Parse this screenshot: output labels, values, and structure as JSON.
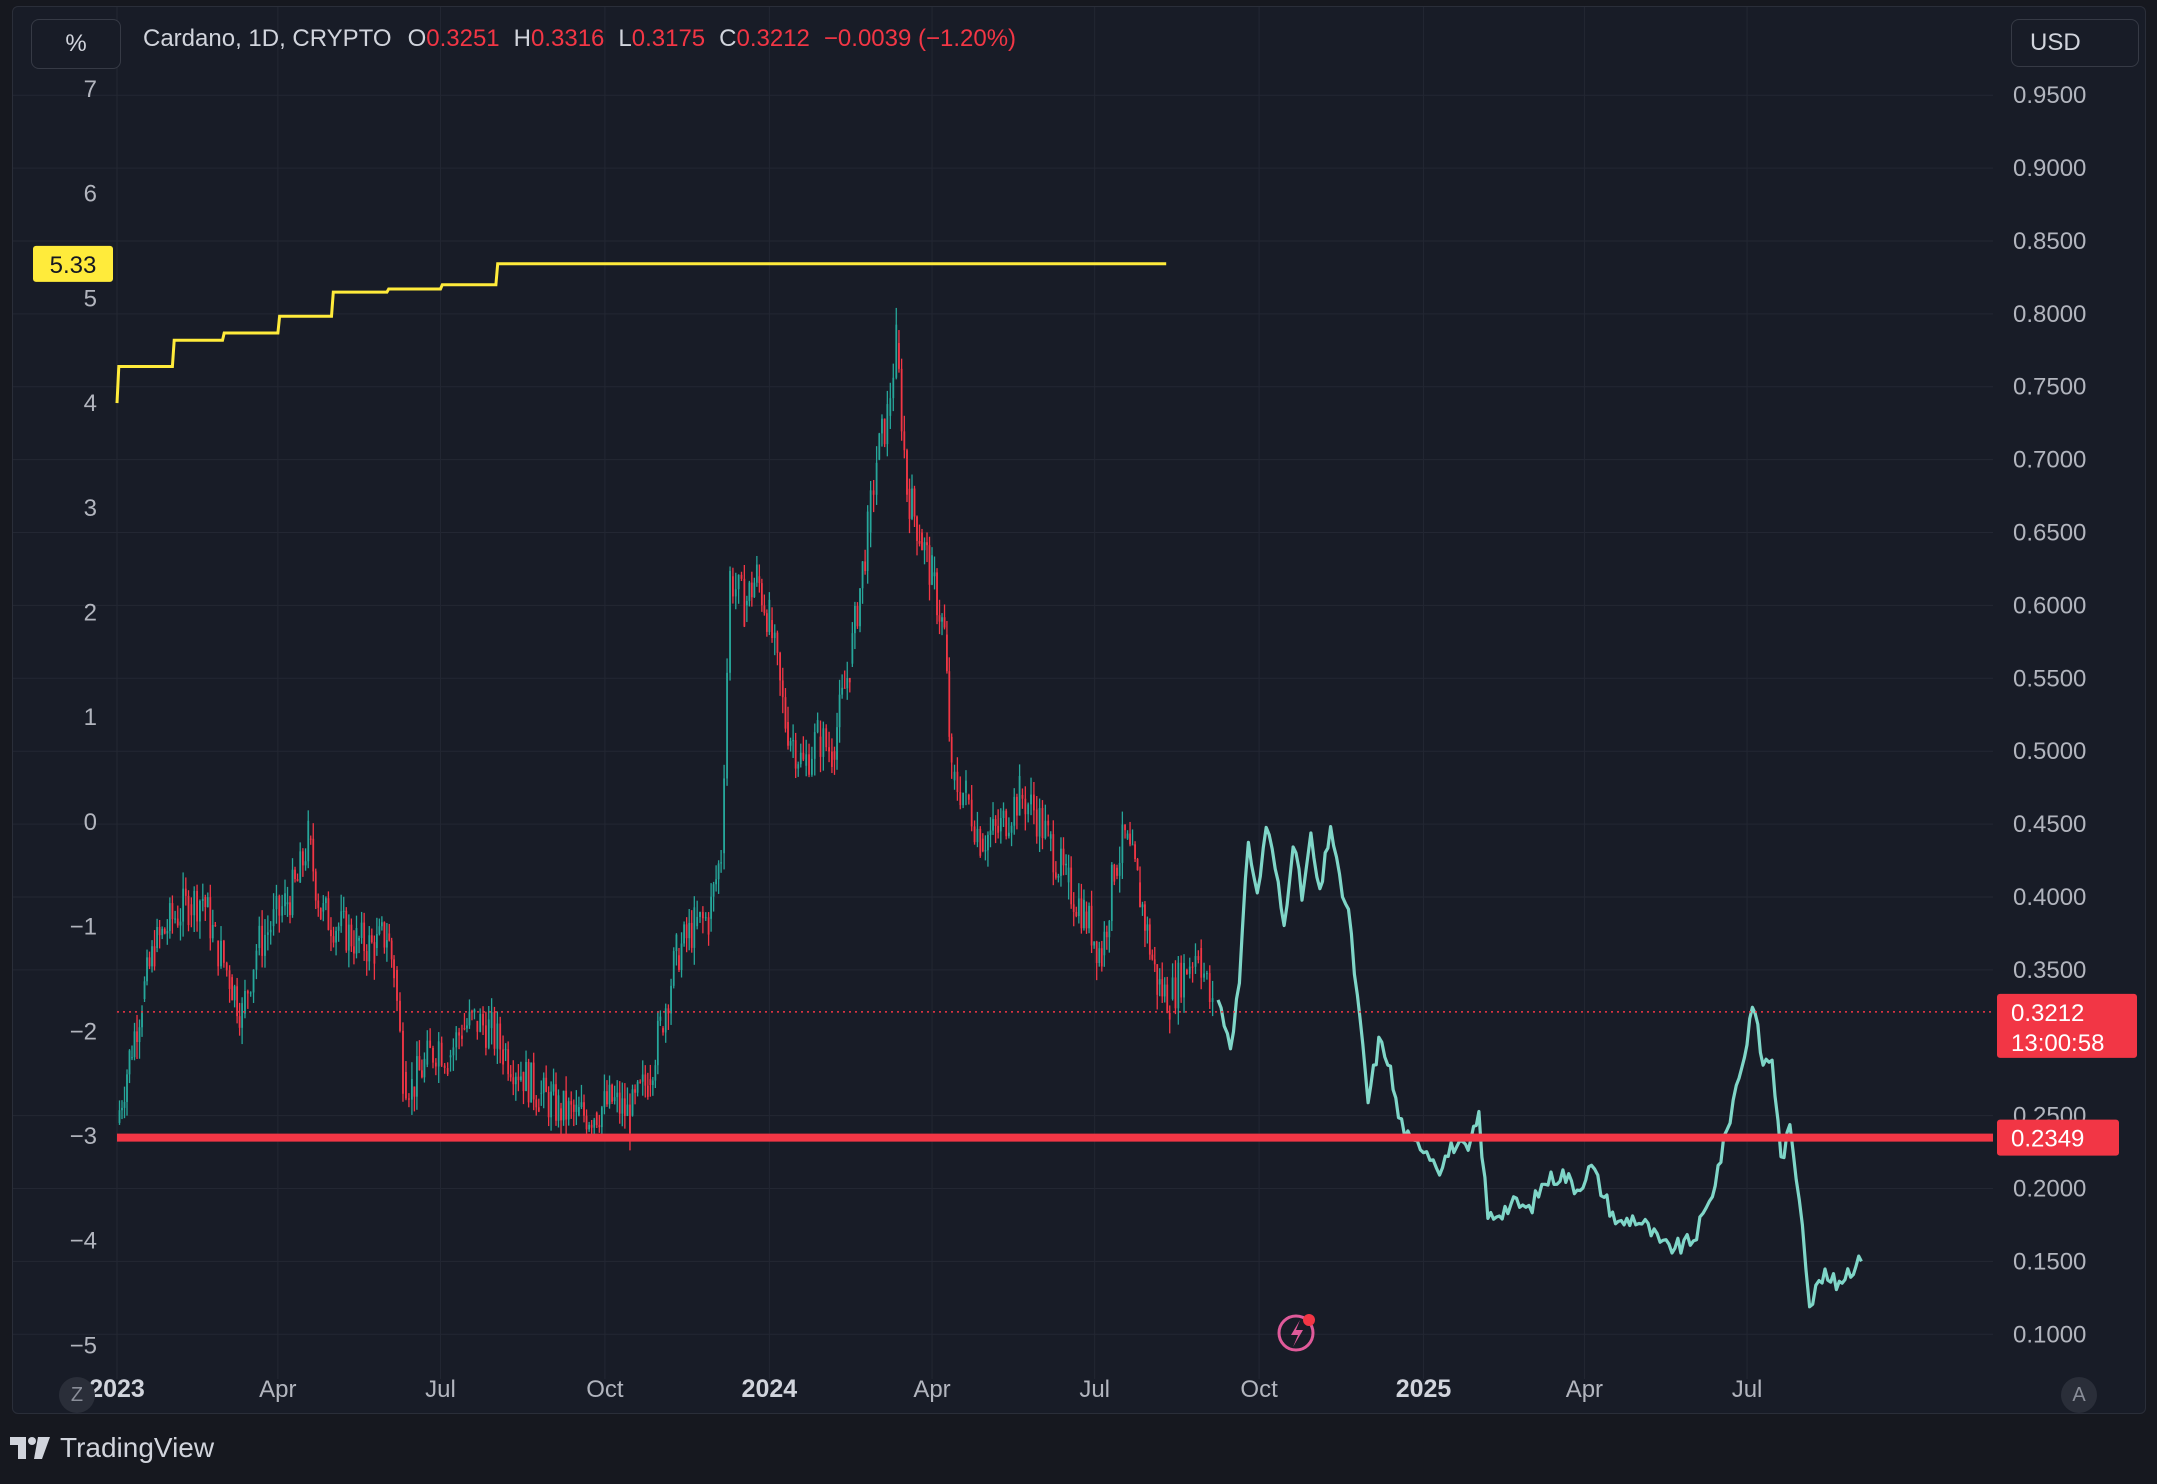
{
  "header": {
    "percent_button": "%",
    "currency_button": "USD",
    "symbol": "Cardano, 1D, CRYPTO",
    "open_label": "O",
    "open_value": "0.3251",
    "high_label": "H",
    "high_value": "0.3316",
    "low_label": "L",
    "low_value": "0.3175",
    "close_label": "C",
    "close_value": "0.3212",
    "change": "−0.0039 (−1.20%)"
  },
  "footer": {
    "brand": "TradingView",
    "z_button": "Z",
    "a_button": "A"
  },
  "colors": {
    "background": "#181c27",
    "up": "#26a69a",
    "down": "#f23645",
    "projection": "#7fd6c8",
    "percent_line": "#ffeb3b",
    "support": "#f23645",
    "grid": "#232733"
  },
  "chart_data": {
    "type": "line",
    "title": "Cardano, 1D, CRYPTO",
    "y_right": {
      "unit": "USD",
      "ylim": [
        0.0762,
        0.9762
      ],
      "ticks": [
        "0.9500",
        "0.9000",
        "0.8500",
        "0.8000",
        "0.7500",
        "0.7000",
        "0.6500",
        "0.6000",
        "0.5500",
        "0.5000",
        "0.4500",
        "0.4000",
        "0.3500",
        "0.2500",
        "0.2000",
        "0.1500",
        "0.1000"
      ],
      "tick_values": [
        0.95,
        0.9,
        0.85,
        0.8,
        0.75,
        0.7,
        0.65,
        0.6,
        0.55,
        0.5,
        0.45,
        0.4,
        0.35,
        0.25,
        0.2,
        0.15,
        0.1
      ]
    },
    "y_left": {
      "unit": "%",
      "ticks": [
        "7",
        "6",
        "5",
        "4",
        "3",
        "2",
        "1",
        "0",
        "−1",
        "−2",
        "−3",
        "−4",
        "−5"
      ],
      "tick_values": [
        7,
        6,
        5,
        4,
        3,
        2,
        1,
        0,
        -1,
        -2,
        -3,
        -4,
        -5
      ]
    },
    "x_axis": {
      "range": [
        "2023-01-01",
        "2025-09-05"
      ],
      "ticks": [
        {
          "label": "2023",
          "date": "2023-01-01",
          "bold": true
        },
        {
          "label": "Apr",
          "date": "2023-04-01",
          "bold": false
        },
        {
          "label": "Jul",
          "date": "2023-07-01",
          "bold": false
        },
        {
          "label": "Oct",
          "date": "2023-10-01",
          "bold": false
        },
        {
          "label": "2024",
          "date": "2024-01-01",
          "bold": true
        },
        {
          "label": "Apr",
          "date": "2024-04-01",
          "bold": false
        },
        {
          "label": "Jul",
          "date": "2024-07-01",
          "bold": false
        },
        {
          "label": "Oct",
          "date": "2024-10-01",
          "bold": false
        },
        {
          "label": "2025",
          "date": "2025-01-01",
          "bold": true
        },
        {
          "label": "Apr",
          "date": "2025-04-01",
          "bold": false
        },
        {
          "label": "Jul",
          "date": "2025-07-01",
          "bold": false
        }
      ]
    },
    "series": [
      {
        "kind": "candlestick_close",
        "points": [
          [
            "2023-01-01",
            0.245
          ],
          [
            "2023-01-08",
            0.29
          ],
          [
            "2023-01-15",
            0.33
          ],
          [
            "2023-01-22",
            0.365
          ],
          [
            "2023-02-01",
            0.385
          ],
          [
            "2023-02-10",
            0.395
          ],
          [
            "2023-02-18",
            0.4
          ],
          [
            "2023-02-25",
            0.37
          ],
          [
            "2023-03-05",
            0.345
          ],
          [
            "2023-03-12",
            0.32
          ],
          [
            "2023-03-20",
            0.365
          ],
          [
            "2023-03-28",
            0.38
          ],
          [
            "2023-04-05",
            0.395
          ],
          [
            "2023-04-12",
            0.41
          ],
          [
            "2023-04-18",
            0.44
          ],
          [
            "2023-04-25",
            0.39
          ],
          [
            "2023-05-05",
            0.38
          ],
          [
            "2023-05-15",
            0.37
          ],
          [
            "2023-05-25",
            0.365
          ],
          [
            "2023-06-01",
            0.375
          ],
          [
            "2023-06-05",
            0.35
          ],
          [
            "2023-06-10",
            0.28
          ],
          [
            "2023-06-15",
            0.27
          ],
          [
            "2023-06-22",
            0.285
          ],
          [
            "2023-06-30",
            0.3
          ],
          [
            "2023-07-05",
            0.29
          ],
          [
            "2023-07-13",
            0.31
          ],
          [
            "2023-07-20",
            0.315
          ],
          [
            "2023-07-28",
            0.31
          ],
          [
            "2023-08-05",
            0.295
          ],
          [
            "2023-08-15",
            0.28
          ],
          [
            "2023-08-25",
            0.265
          ],
          [
            "2023-09-05",
            0.255
          ],
          [
            "2023-09-15",
            0.25
          ],
          [
            "2023-09-25",
            0.252
          ],
          [
            "2023-10-05",
            0.26
          ],
          [
            "2023-10-15",
            0.25
          ],
          [
            "2023-10-25",
            0.275
          ],
          [
            "2023-11-01",
            0.31
          ],
          [
            "2023-11-10",
            0.36
          ],
          [
            "2023-11-20",
            0.38
          ],
          [
            "2023-11-28",
            0.385
          ],
          [
            "2023-12-05",
            0.43
          ],
          [
            "2023-12-10",
            0.62
          ],
          [
            "2023-12-18",
            0.6
          ],
          [
            "2023-12-25",
            0.62
          ],
          [
            "2024-01-01",
            0.59
          ],
          [
            "2024-01-10",
            0.52
          ],
          [
            "2024-01-20",
            0.49
          ],
          [
            "2024-01-28",
            0.51
          ],
          [
            "2024-02-05",
            0.5
          ],
          [
            "2024-02-15",
            0.56
          ],
          [
            "2024-02-25",
            0.65
          ],
          [
            "2024-03-01",
            0.7
          ],
          [
            "2024-03-07",
            0.73
          ],
          [
            "2024-03-12",
            0.78
          ],
          [
            "2024-03-18",
            0.68
          ],
          [
            "2024-03-25",
            0.65
          ],
          [
            "2024-04-01",
            0.62
          ],
          [
            "2024-04-08",
            0.58
          ],
          [
            "2024-04-12",
            0.48
          ],
          [
            "2024-04-20",
            0.47
          ],
          [
            "2024-04-28",
            0.44
          ],
          [
            "2024-05-08",
            0.445
          ],
          [
            "2024-05-20",
            0.47
          ],
          [
            "2024-05-28",
            0.46
          ],
          [
            "2024-06-05",
            0.44
          ],
          [
            "2024-06-15",
            0.41
          ],
          [
            "2024-06-25",
            0.39
          ],
          [
            "2024-07-05",
            0.36
          ],
          [
            "2024-07-12",
            0.42
          ],
          [
            "2024-07-18",
            0.44
          ],
          [
            "2024-07-25",
            0.41
          ],
          [
            "2024-08-05",
            0.34
          ],
          [
            "2024-08-12",
            0.33
          ],
          [
            "2024-08-20",
            0.35
          ],
          [
            "2024-08-28",
            0.365
          ],
          [
            "2024-09-05",
            0.321
          ]
        ]
      },
      {
        "kind": "projection_line",
        "points": [
          [
            "2024-09-08",
            0.33
          ],
          [
            "2024-09-15",
            0.3
          ],
          [
            "2024-09-20",
            0.34
          ],
          [
            "2024-09-25",
            0.44
          ],
          [
            "2024-09-30",
            0.4
          ],
          [
            "2024-10-05",
            0.45
          ],
          [
            "2024-10-10",
            0.42
          ],
          [
            "2024-10-15",
            0.38
          ],
          [
            "2024-10-20",
            0.44
          ],
          [
            "2024-10-25",
            0.4
          ],
          [
            "2024-10-30",
            0.44
          ],
          [
            "2024-11-04",
            0.4
          ],
          [
            "2024-11-10",
            0.45
          ],
          [
            "2024-11-15",
            0.41
          ],
          [
            "2024-11-20",
            0.39
          ],
          [
            "2024-11-25",
            0.33
          ],
          [
            "2024-12-01",
            0.26
          ],
          [
            "2024-12-07",
            0.3
          ],
          [
            "2024-12-12",
            0.29
          ],
          [
            "2024-12-18",
            0.25
          ],
          [
            "2024-12-25",
            0.23
          ],
          [
            "2025-01-01",
            0.23
          ],
          [
            "2025-01-10",
            0.215
          ],
          [
            "2025-01-18",
            0.23
          ],
          [
            "2025-01-26",
            0.225
          ],
          [
            "2025-02-01",
            0.25
          ],
          [
            "2025-02-06",
            0.18
          ],
          [
            "2025-02-14",
            0.185
          ],
          [
            "2025-02-22",
            0.19
          ],
          [
            "2025-03-01",
            0.185
          ],
          [
            "2025-03-10",
            0.205
          ],
          [
            "2025-03-20",
            0.21
          ],
          [
            "2025-03-28",
            0.2
          ],
          [
            "2025-04-05",
            0.215
          ],
          [
            "2025-04-12",
            0.195
          ],
          [
            "2025-04-20",
            0.175
          ],
          [
            "2025-04-28",
            0.18
          ],
          [
            "2025-05-05",
            0.175
          ],
          [
            "2025-05-15",
            0.16
          ],
          [
            "2025-05-25",
            0.16
          ],
          [
            "2025-06-01",
            0.165
          ],
          [
            "2025-06-10",
            0.19
          ],
          [
            "2025-06-18",
            0.23
          ],
          [
            "2025-06-25",
            0.27
          ],
          [
            "2025-07-01",
            0.3
          ],
          [
            "2025-07-04",
            0.33
          ],
          [
            "2025-07-10",
            0.285
          ],
          [
            "2025-07-15",
            0.29
          ],
          [
            "2025-07-20",
            0.22
          ],
          [
            "2025-07-25",
            0.24
          ],
          [
            "2025-08-01",
            0.18
          ],
          [
            "2025-08-05",
            0.12
          ],
          [
            "2025-08-12",
            0.14
          ],
          [
            "2025-08-20",
            0.135
          ],
          [
            "2025-08-28",
            0.145
          ],
          [
            "2025-09-03",
            0.15
          ]
        ]
      },
      {
        "kind": "percent_step",
        "axis": "left",
        "points": [
          [
            "2023-01-01",
            4.0
          ],
          [
            "2023-01-02",
            4.35
          ],
          [
            "2023-02-01",
            4.35
          ],
          [
            "2023-02-02",
            4.6
          ],
          [
            "2023-03-01",
            4.6
          ],
          [
            "2023-03-02",
            4.67
          ],
          [
            "2023-04-01",
            4.67
          ],
          [
            "2023-04-02",
            4.83
          ],
          [
            "2023-05-01",
            4.83
          ],
          [
            "2023-05-02",
            5.06
          ],
          [
            "2023-06-01",
            5.06
          ],
          [
            "2023-06-02",
            5.09
          ],
          [
            "2023-07-01",
            5.09
          ],
          [
            "2023-07-02",
            5.13
          ],
          [
            "2023-08-01",
            5.13
          ],
          [
            "2023-08-02",
            5.33
          ],
          [
            "2024-08-10",
            5.33
          ]
        ],
        "last_value_label": "5.33"
      }
    ],
    "horizontal_lines": [
      {
        "name": "support",
        "value": 0.2349,
        "label": "0.2349",
        "style": "solid-thick"
      },
      {
        "name": "last-price",
        "value": 0.3212,
        "label": "0.3212",
        "countdown": "13:00:58",
        "style": "dotted"
      }
    ],
    "grid": true,
    "legend": "none"
  }
}
